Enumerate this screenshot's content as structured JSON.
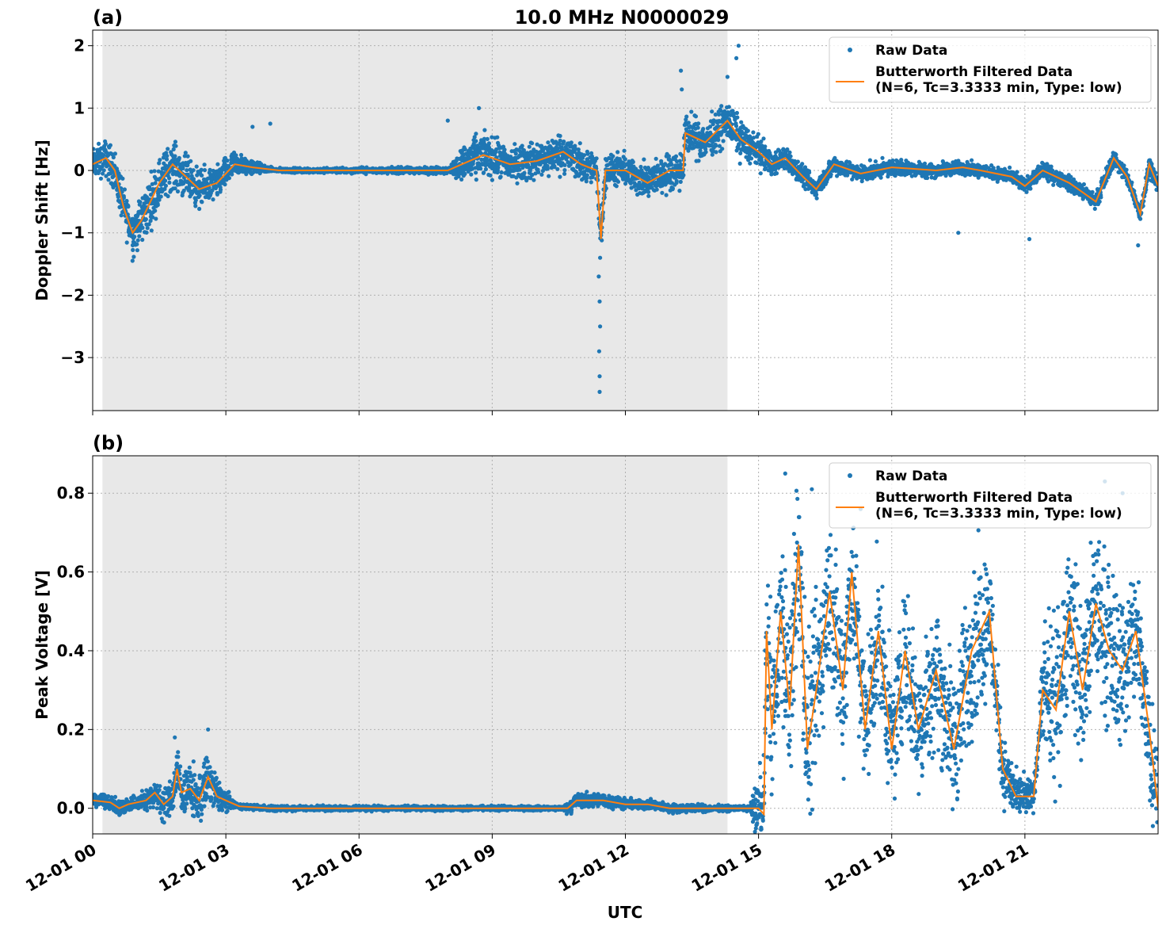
{
  "figure": {
    "title": "10.0 MHz N0000029"
  },
  "colors": {
    "raw": "#1f77b4",
    "filtered": "#ff7f0e",
    "night_shade": "#e8e8e8",
    "grid": "#b0b0b0"
  },
  "legend": {
    "raw": "Raw Data",
    "filtered_line1": "Butterworth Filtered Data",
    "filtered_line2": "(N=6, Tc=3.3333 min, Type: low)"
  },
  "x_axis": {
    "label": "UTC",
    "range_hours": [
      0,
      24
    ],
    "ticks": [
      {
        "h": 0,
        "label": "12-01 00"
      },
      {
        "h": 3,
        "label": "12-01 03"
      },
      {
        "h": 6,
        "label": "12-01 06"
      },
      {
        "h": 9,
        "label": "12-01 09"
      },
      {
        "h": 12,
        "label": "12-01 12"
      },
      {
        "h": 15,
        "label": "12-01 15"
      },
      {
        "h": 18,
        "label": "12-01 18"
      },
      {
        "h": 21,
        "label": "12-01 21"
      }
    ]
  },
  "chart_data": [
    {
      "type": "scatter",
      "panel": "(a)",
      "ylabel": "Doppler Shift [Hz]",
      "ylim": [
        -3.85,
        2.25
      ],
      "yticks": [
        {
          "v": 2,
          "label": "2"
        },
        {
          "v": 1,
          "label": "1"
        },
        {
          "v": 0,
          "label": "0"
        },
        {
          "v": -1,
          "label": "−1"
        },
        {
          "v": -2,
          "label": "−2"
        },
        {
          "v": -3,
          "label": "−3"
        }
      ],
      "night_shade_hours": [
        0.22,
        14.3
      ],
      "grid": true,
      "legend_position": "top-right",
      "filtered_trend": [
        [
          0.0,
          0.1
        ],
        [
          0.3,
          0.2
        ],
        [
          0.5,
          0.0
        ],
        [
          0.7,
          -0.6
        ],
        [
          0.9,
          -1.0
        ],
        [
          1.1,
          -0.8
        ],
        [
          1.3,
          -0.5
        ],
        [
          1.5,
          -0.2
        ],
        [
          1.8,
          0.1
        ],
        [
          2.1,
          -0.1
        ],
        [
          2.4,
          -0.3
        ],
        [
          2.8,
          -0.2
        ],
        [
          3.2,
          0.1
        ],
        [
          3.6,
          0.05
        ],
        [
          4.2,
          0.0
        ],
        [
          5.0,
          0.0
        ],
        [
          6.0,
          0.0
        ],
        [
          7.0,
          0.0
        ],
        [
          8.0,
          0.0
        ],
        [
          8.8,
          0.25
        ],
        [
          9.4,
          0.1
        ],
        [
          10.0,
          0.15
        ],
        [
          10.6,
          0.3
        ],
        [
          11.0,
          0.1
        ],
        [
          11.35,
          0.0
        ],
        [
          11.45,
          -1.1
        ],
        [
          11.55,
          0.0
        ],
        [
          12.0,
          0.0
        ],
        [
          12.5,
          -0.2
        ],
        [
          13.0,
          0.0
        ],
        [
          13.3,
          0.0
        ],
        [
          13.35,
          0.6
        ],
        [
          13.8,
          0.45
        ],
        [
          14.3,
          0.8
        ],
        [
          14.6,
          0.5
        ],
        [
          15.0,
          0.3
        ],
        [
          15.3,
          0.1
        ],
        [
          15.6,
          0.2
        ],
        [
          16.0,
          -0.1
        ],
        [
          16.3,
          -0.3
        ],
        [
          16.7,
          0.1
        ],
        [
          17.3,
          -0.05
        ],
        [
          18.0,
          0.05
        ],
        [
          19.0,
          0.0
        ],
        [
          19.6,
          0.05
        ],
        [
          20.0,
          0.0
        ],
        [
          20.7,
          -0.1
        ],
        [
          21.0,
          -0.25
        ],
        [
          21.4,
          0.0
        ],
        [
          22.0,
          -0.2
        ],
        [
          22.6,
          -0.5
        ],
        [
          23.0,
          0.2
        ],
        [
          23.3,
          -0.1
        ],
        [
          23.6,
          -0.7
        ],
        [
          23.8,
          0.1
        ],
        [
          24.0,
          -0.25
        ]
      ],
      "raw_spread": [
        [
          0.0,
          0.35
        ],
        [
          0.7,
          0.5
        ],
        [
          1.2,
          0.6
        ],
        [
          2.0,
          0.5
        ],
        [
          3.0,
          0.35
        ],
        [
          4.0,
          0.05
        ],
        [
          8.0,
          0.08
        ],
        [
          8.5,
          0.5
        ],
        [
          9.5,
          0.4
        ],
        [
          10.5,
          0.45
        ],
        [
          11.5,
          0.35
        ],
        [
          12.5,
          0.4
        ],
        [
          13.5,
          0.45
        ],
        [
          14.5,
          0.45
        ],
        [
          15.5,
          0.25
        ],
        [
          17.0,
          0.2
        ],
        [
          20.0,
          0.15
        ],
        [
          24.0,
          0.2
        ]
      ],
      "raw_outliers": [
        [
          11.42,
          -3.55
        ],
        [
          11.42,
          -3.3
        ],
        [
          11.41,
          -2.9
        ],
        [
          11.43,
          -2.5
        ],
        [
          11.42,
          -2.1
        ],
        [
          11.4,
          -1.7
        ],
        [
          11.43,
          -1.4
        ],
        [
          13.25,
          1.6
        ],
        [
          13.27,
          1.3
        ],
        [
          14.3,
          1.5
        ],
        [
          14.5,
          1.8
        ],
        [
          14.55,
          2.0
        ],
        [
          4.0,
          0.75
        ],
        [
          3.6,
          0.7
        ],
        [
          8.7,
          1.0
        ],
        [
          8.0,
          0.8
        ],
        [
          19.5,
          -1.0
        ],
        [
          21.1,
          -1.1
        ],
        [
          23.55,
          -1.2
        ]
      ]
    },
    {
      "type": "scatter",
      "panel": "(b)",
      "ylabel": "Peak Voltage [V]",
      "ylim": [
        -0.065,
        0.895
      ],
      "yticks": [
        {
          "v": 0.8,
          "label": "0.8"
        },
        {
          "v": 0.6,
          "label": "0.6"
        },
        {
          "v": 0.4,
          "label": "0.4"
        },
        {
          "v": 0.2,
          "label": "0.2"
        },
        {
          "v": 0.0,
          "label": "0.0"
        }
      ],
      "night_shade_hours": [
        0.22,
        14.3
      ],
      "grid": true,
      "legend_position": "top-right",
      "filtered_trend": [
        [
          0.0,
          0.02
        ],
        [
          0.4,
          0.015
        ],
        [
          0.6,
          0.0
        ],
        [
          0.8,
          0.01
        ],
        [
          1.2,
          0.02
        ],
        [
          1.4,
          0.04
        ],
        [
          1.6,
          0.01
        ],
        [
          1.8,
          0.03
        ],
        [
          1.9,
          0.1
        ],
        [
          2.0,
          0.04
        ],
        [
          2.2,
          0.05
        ],
        [
          2.4,
          0.02
        ],
        [
          2.6,
          0.08
        ],
        [
          2.8,
          0.03
        ],
        [
          3.0,
          0.02
        ],
        [
          3.3,
          0.005
        ],
        [
          4.0,
          0.0
        ],
        [
          8.0,
          0.0
        ],
        [
          10.7,
          0.0
        ],
        [
          10.9,
          0.02
        ],
        [
          11.5,
          0.02
        ],
        [
          12.0,
          0.01
        ],
        [
          12.5,
          0.01
        ],
        [
          13.0,
          0.0
        ],
        [
          14.3,
          0.0
        ],
        [
          15.0,
          0.0
        ],
        [
          15.12,
          -0.015
        ],
        [
          15.18,
          0.45
        ],
        [
          15.3,
          0.2
        ],
        [
          15.5,
          0.5
        ],
        [
          15.7,
          0.25
        ],
        [
          15.9,
          0.67
        ],
        [
          16.1,
          0.15
        ],
        [
          16.3,
          0.3
        ],
        [
          16.6,
          0.55
        ],
        [
          16.9,
          0.3
        ],
        [
          17.1,
          0.6
        ],
        [
          17.4,
          0.2
        ],
        [
          17.7,
          0.45
        ],
        [
          18.0,
          0.15
        ],
        [
          18.3,
          0.4
        ],
        [
          18.6,
          0.2
        ],
        [
          19.0,
          0.35
        ],
        [
          19.4,
          0.15
        ],
        [
          19.8,
          0.4
        ],
        [
          20.2,
          0.5
        ],
        [
          20.5,
          0.1
        ],
        [
          20.8,
          0.03
        ],
        [
          21.2,
          0.03
        ],
        [
          21.4,
          0.3
        ],
        [
          21.7,
          0.25
        ],
        [
          22.0,
          0.5
        ],
        [
          22.3,
          0.3
        ],
        [
          22.6,
          0.52
        ],
        [
          22.9,
          0.4
        ],
        [
          23.2,
          0.35
        ],
        [
          23.5,
          0.45
        ],
        [
          23.8,
          0.2
        ],
        [
          24.0,
          0.0
        ]
      ],
      "raw_spread": [
        [
          0.0,
          0.02
        ],
        [
          1.0,
          0.03
        ],
        [
          2.0,
          0.08
        ],
        [
          2.6,
          0.1
        ],
        [
          3.2,
          0.01
        ],
        [
          10.6,
          0.008
        ],
        [
          10.8,
          0.03
        ],
        [
          12.0,
          0.02
        ],
        [
          14.8,
          0.008
        ],
        [
          15.2,
          0.3
        ],
        [
          16.0,
          0.35
        ],
        [
          17.0,
          0.3
        ],
        [
          18.0,
          0.25
        ],
        [
          19.0,
          0.25
        ],
        [
          20.0,
          0.3
        ],
        [
          20.6,
          0.1
        ],
        [
          21.3,
          0.05
        ],
        [
          21.5,
          0.3
        ],
        [
          22.5,
          0.3
        ],
        [
          24.0,
          0.25
        ]
      ],
      "raw_outliers": [
        [
          1.85,
          0.18
        ],
        [
          2.6,
          0.2
        ],
        [
          15.6,
          0.85
        ],
        [
          16.2,
          0.81
        ],
        [
          17.3,
          0.76
        ],
        [
          19.8,
          0.75
        ],
        [
          22.8,
          0.83
        ],
        [
          23.2,
          0.8
        ],
        [
          15.1,
          -0.02
        ]
      ]
    }
  ]
}
